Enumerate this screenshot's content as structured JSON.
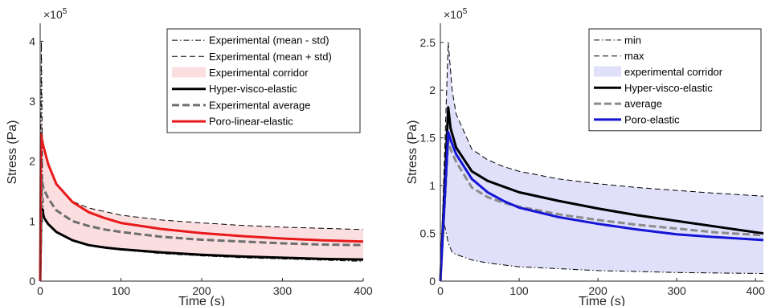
{
  "chart_data": [
    {
      "type": "line",
      "xlabel": "Time (s)",
      "ylabel": "Stress (Pa)",
      "exponent_label": "×10",
      "exponent_power": "5",
      "xlim": [
        0,
        400
      ],
      "ylim": [
        0,
        4.3
      ],
      "y_scale_note": "values in units of 1e5 Pa",
      "xticks": [
        "0",
        "100",
        "200",
        "300",
        "400"
      ],
      "yticks": [
        "0",
        "1",
        "2",
        "3",
        "4"
      ],
      "legend_position": "top-right",
      "series": [
        {
          "name": "Experimental (mean - std)",
          "color": "#000000",
          "style": "dashdot",
          "points": [
            [
              0,
              0
            ],
            [
              1.5,
              4.0
            ],
            [
              3,
              1.5
            ],
            [
              5,
              1.05
            ],
            [
              10,
              0.95
            ],
            [
              20,
              0.82
            ],
            [
              40,
              0.68
            ],
            [
              60,
              0.6
            ],
            [
              80,
              0.55
            ],
            [
              100,
              0.52
            ],
            [
              150,
              0.46
            ],
            [
              200,
              0.42
            ],
            [
              250,
              0.39
            ],
            [
              300,
              0.37
            ],
            [
              350,
              0.35
            ],
            [
              400,
              0.33
            ]
          ]
        },
        {
          "name": "Experimental (mean + std)",
          "color": "#000000",
          "style": "dashed",
          "points": [
            [
              0,
              0
            ],
            [
              2,
              2.5
            ],
            [
              4,
              2.3
            ],
            [
              10,
              1.98
            ],
            [
              20,
              1.6
            ],
            [
              40,
              1.33
            ],
            [
              60,
              1.22
            ],
            [
              80,
              1.16
            ],
            [
              100,
              1.1
            ],
            [
              150,
              1.02
            ],
            [
              200,
              0.97
            ],
            [
              250,
              0.93
            ],
            [
              300,
              0.9
            ],
            [
              350,
              0.88
            ],
            [
              400,
              0.86
            ]
          ]
        },
        {
          "name": "Experimental corridor",
          "color": "#fbdfe0",
          "style": "fill",
          "points": []
        },
        {
          "name": "Hyper-visco-elastic",
          "color": "#000000",
          "style": "solid-thick",
          "points": [
            [
              0,
              0
            ],
            [
              1.5,
              1.25
            ],
            [
              3,
              1.15
            ],
            [
              5,
              1.05
            ],
            [
              10,
              0.95
            ],
            [
              20,
              0.82
            ],
            [
              40,
              0.68
            ],
            [
              60,
              0.6
            ],
            [
              80,
              0.56
            ],
            [
              100,
              0.53
            ],
            [
              150,
              0.48
            ],
            [
              200,
              0.44
            ],
            [
              250,
              0.41
            ],
            [
              300,
              0.39
            ],
            [
              350,
              0.37
            ],
            [
              400,
              0.36
            ]
          ]
        },
        {
          "name": "Experimental average",
          "color": "#6e6e6e",
          "style": "dashed-thick",
          "points": [
            [
              0,
              0
            ],
            [
              2,
              1.7
            ],
            [
              4,
              1.55
            ],
            [
              10,
              1.38
            ],
            [
              20,
              1.18
            ],
            [
              40,
              1.0
            ],
            [
              60,
              0.92
            ],
            [
              80,
              0.86
            ],
            [
              100,
              0.82
            ],
            [
              150,
              0.74
            ],
            [
              200,
              0.69
            ],
            [
              250,
              0.66
            ],
            [
              300,
              0.63
            ],
            [
              350,
              0.61
            ],
            [
              400,
              0.6
            ]
          ]
        },
        {
          "name": "Poro-linear-elastic",
          "color": "#e8191b",
          "style": "solid-thick",
          "points": [
            [
              0,
              0
            ],
            [
              1,
              2.45
            ],
            [
              3,
              2.3
            ],
            [
              5,
              2.2
            ],
            [
              10,
              1.95
            ],
            [
              20,
              1.62
            ],
            [
              40,
              1.32
            ],
            [
              60,
              1.15
            ],
            [
              80,
              1.05
            ],
            [
              100,
              0.97
            ],
            [
              150,
              0.87
            ],
            [
              200,
              0.8
            ],
            [
              250,
              0.75
            ],
            [
              300,
              0.71
            ],
            [
              350,
              0.68
            ],
            [
              400,
              0.66
            ]
          ]
        }
      ]
    },
    {
      "type": "line",
      "xlabel": "Time (s)",
      "ylabel": "Stress (Pa)",
      "exponent_label": "×10",
      "exponent_power": "5",
      "xlim": [
        0,
        410
      ],
      "ylim": [
        0,
        2.7
      ],
      "y_scale_note": "values in units of 1e5 Pa",
      "xticks": [
        "0",
        "100",
        "200",
        "300",
        "400"
      ],
      "yticks": [
        "0",
        "0.5",
        "1",
        "1.5",
        "2",
        "2.5"
      ],
      "legend_position": "top-right",
      "series": [
        {
          "name": "min",
          "color": "#000000",
          "style": "dashdot",
          "points": [
            [
              0,
              0
            ],
            [
              5,
              0.6
            ],
            [
              10,
              0.4
            ],
            [
              15,
              0.3
            ],
            [
              20,
              0.28
            ],
            [
              40,
              0.22
            ],
            [
              60,
              0.19
            ],
            [
              80,
              0.17
            ],
            [
              100,
              0.15
            ],
            [
              150,
              0.13
            ],
            [
              200,
              0.11
            ],
            [
              250,
              0.1
            ],
            [
              300,
              0.09
            ],
            [
              350,
              0.085
            ],
            [
              410,
              0.08
            ]
          ]
        },
        {
          "name": "max",
          "color": "#000000",
          "style": "dashed",
          "points": [
            [
              0,
              0
            ],
            [
              10,
              2.5
            ],
            [
              15,
              2.0
            ],
            [
              20,
              1.75
            ],
            [
              40,
              1.38
            ],
            [
              60,
              1.27
            ],
            [
              80,
              1.2
            ],
            [
              100,
              1.15
            ],
            [
              150,
              1.07
            ],
            [
              200,
              1.02
            ],
            [
              250,
              0.98
            ],
            [
              300,
              0.95
            ],
            [
              350,
              0.92
            ],
            [
              410,
              0.89
            ]
          ]
        },
        {
          "name": "experimental corridor",
          "color": "#e0e0fa",
          "style": "fill",
          "points": []
        },
        {
          "name": "Hyper-visco-elastic",
          "color": "#000000",
          "style": "solid-thick",
          "points": [
            [
              0,
              0
            ],
            [
              10,
              1.82
            ],
            [
              13,
              1.6
            ],
            [
              20,
              1.4
            ],
            [
              40,
              1.15
            ],
            [
              60,
              1.05
            ],
            [
              80,
              0.99
            ],
            [
              100,
              0.93
            ],
            [
              150,
              0.84
            ],
            [
              200,
              0.76
            ],
            [
              250,
              0.69
            ],
            [
              300,
              0.63
            ],
            [
              350,
              0.57
            ],
            [
              410,
              0.5
            ]
          ]
        },
        {
          "name": "average",
          "color": "#8c8c8c",
          "style": "dashed-thick",
          "points": [
            [
              0,
              0
            ],
            [
              10,
              1.47
            ],
            [
              13,
              1.38
            ],
            [
              20,
              1.25
            ],
            [
              40,
              0.98
            ],
            [
              60,
              0.88
            ],
            [
              80,
              0.82
            ],
            [
              100,
              0.78
            ],
            [
              150,
              0.7
            ],
            [
              200,
              0.64
            ],
            [
              250,
              0.59
            ],
            [
              300,
              0.55
            ],
            [
              350,
              0.51
            ],
            [
              410,
              0.48
            ]
          ]
        },
        {
          "name": "Poro-elastic",
          "color": "#1515d6",
          "style": "solid-thick",
          "points": [
            [
              0,
              0
            ],
            [
              10,
              1.56
            ],
            [
              13,
              1.48
            ],
            [
              20,
              1.33
            ],
            [
              40,
              1.07
            ],
            [
              60,
              0.93
            ],
            [
              80,
              0.84
            ],
            [
              100,
              0.77
            ],
            [
              150,
              0.67
            ],
            [
              200,
              0.6
            ],
            [
              250,
              0.54
            ],
            [
              300,
              0.49
            ],
            [
              350,
              0.46
            ],
            [
              410,
              0.43
            ]
          ]
        }
      ]
    }
  ]
}
